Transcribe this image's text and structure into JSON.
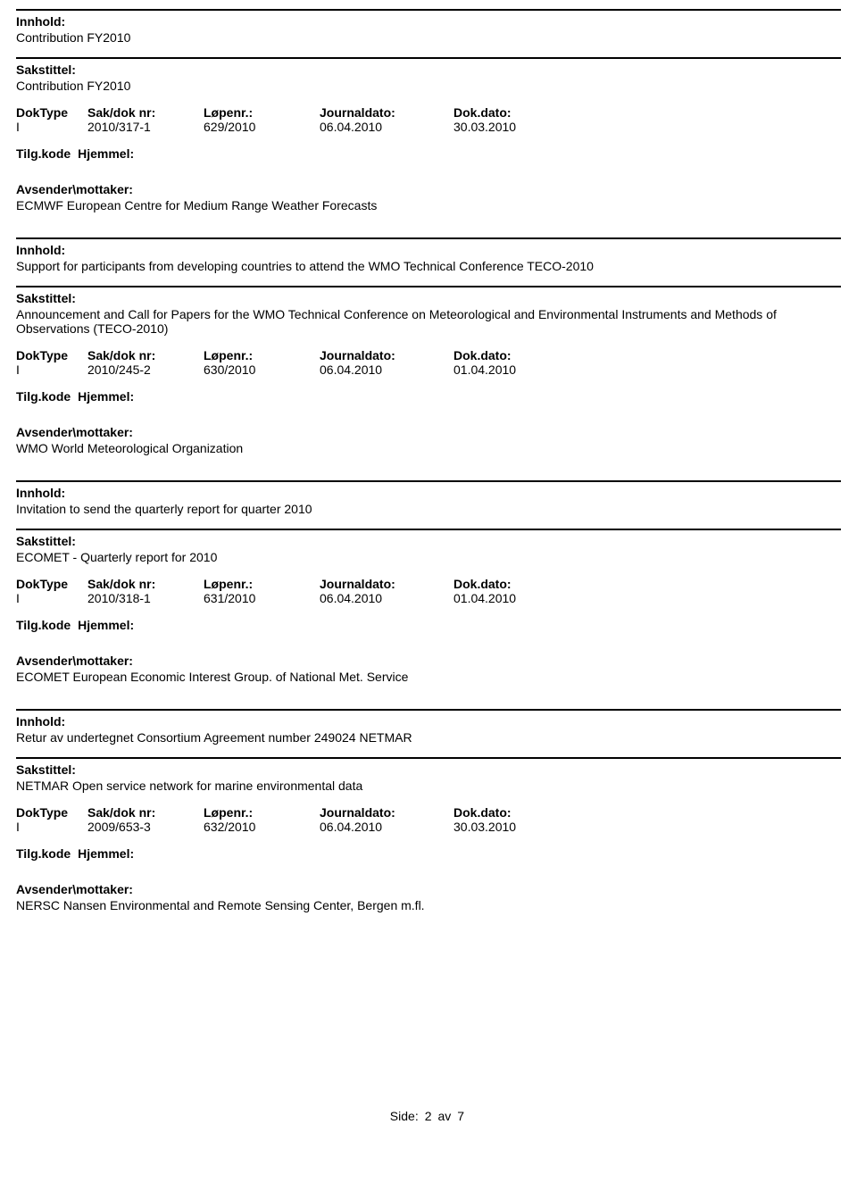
{
  "labels": {
    "innhold": "Innhold:",
    "sakstittel": "Sakstittel:",
    "doktype": "DokType",
    "sakdok": "Sak/dok nr:",
    "lopenr": "Løpenr.:",
    "journaldato": "Journaldato:",
    "dokdato": "Dok.dato:",
    "tilgkode": "Tilg.kode",
    "hjemmel": "Hjemmel:",
    "avsender": "Avsender\\mottaker:"
  },
  "records": [
    {
      "innhold": "Contribution FY2010",
      "sakstittel": "Contribution FY2010",
      "doktype": "I",
      "sakdok": "2010/317-1",
      "lopenr": "629/2010",
      "journaldato": "06.04.2010",
      "dokdato": "30.03.2010",
      "avsender": "ECMWF European Centre for Medium Range Weather Forecasts"
    },
    {
      "innhold": "Support for participants from developing countries to attend the WMO Technical Conference TECO-2010",
      "sakstittel": "Announcement and Call for Papers for the WMO Technical Conference on Meteorological and Environmental Instruments and Methods of Observations (TECO-2010)",
      "doktype": "I",
      "sakdok": "2010/245-2",
      "lopenr": "630/2010",
      "journaldato": "06.04.2010",
      "dokdato": "01.04.2010",
      "avsender": "WMO World Meteorological Organization"
    },
    {
      "innhold": "Invitation to send the quarterly report for quarter 2010",
      "sakstittel": "ECOMET - Quarterly report for 2010",
      "doktype": "I",
      "sakdok": "2010/318-1",
      "lopenr": "631/2010",
      "journaldato": "06.04.2010",
      "dokdato": "01.04.2010",
      "avsender": "ECOMET European Economic Interest Group. of National Met. Service"
    },
    {
      "innhold": "Retur av undertegnet Consortium Agreement number 249024 NETMAR",
      "sakstittel": "NETMAR Open service network for marine environmental data",
      "doktype": "I",
      "sakdok": "2009/653-3",
      "lopenr": "632/2010",
      "journaldato": "06.04.2010",
      "dokdato": "30.03.2010",
      "avsender": "NERSC Nansen Environmental and Remote Sensing Center, Bergen m.fl."
    }
  ],
  "footer": {
    "side": "Side:",
    "page": "2",
    "av": "av",
    "total": "7"
  }
}
